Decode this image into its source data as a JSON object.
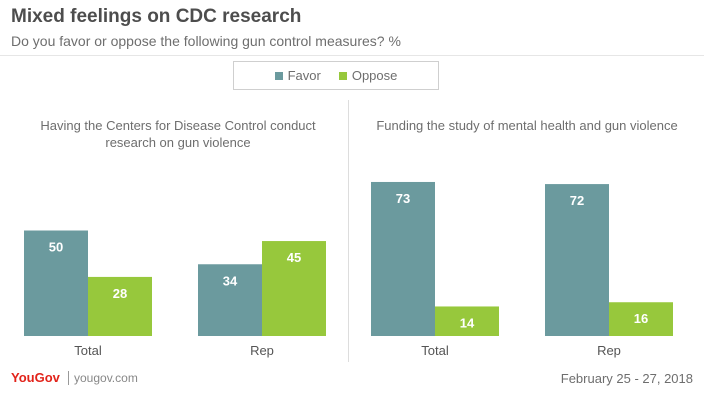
{
  "header": {
    "title": "Mixed feelings on CDC research",
    "subtitle": "Do you favor or oppose the following gun control measures? %"
  },
  "legend": {
    "favor": "Favor",
    "oppose": "Oppose"
  },
  "colors": {
    "favor": "#6b9a9e",
    "oppose": "#97c83c"
  },
  "footer": {
    "brand": "YouGov",
    "site": "yougov.com",
    "date": "February 25 - 27, 2018"
  },
  "chart_data": [
    {
      "type": "bar",
      "title": "Having the Centers for Disease Control conduct research on gun violence",
      "categories": [
        "Total",
        "Rep"
      ],
      "series": [
        {
          "name": "Favor",
          "values": [
            50,
            34
          ]
        },
        {
          "name": "Oppose",
          "values": [
            28,
            45
          ]
        }
      ],
      "ylim": [
        0,
        80
      ],
      "grid": false,
      "legend": "top-center"
    },
    {
      "type": "bar",
      "title": "Funding the study of mental health and gun violence",
      "categories": [
        "Total",
        "Rep"
      ],
      "series": [
        {
          "name": "Favor",
          "values": [
            73,
            72
          ]
        },
        {
          "name": "Oppose",
          "values": [
            14,
            16
          ]
        }
      ],
      "ylim": [
        0,
        80
      ],
      "grid": false,
      "legend": "top-center"
    }
  ]
}
